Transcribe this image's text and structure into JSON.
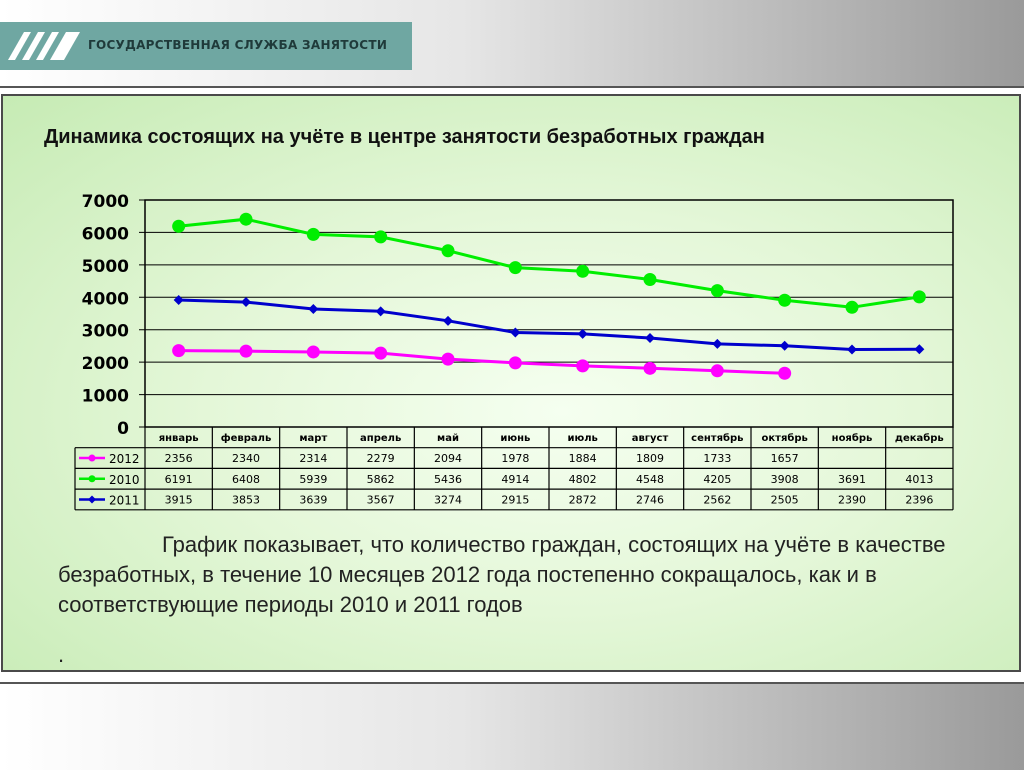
{
  "header": {
    "agency_name": "ГОСУДАРСТВЕННАЯ СЛУЖБА ЗАНЯТОСТИ",
    "logo_icon": "stripes-logo-icon",
    "brand_color": "#6fa7a2"
  },
  "slide": {
    "title": "Динамика состоящих на учёте в центре занятости безработных граждан",
    "caption": "График показывает, что количество граждан, состоящих на учёте в качестве безработных, в течение 10 месяцев 2012 года постепенно сокращалось, как и в соответствующие периоды 2010 и 2011 годов",
    "trailing_dot": "."
  },
  "chart_data": {
    "type": "line",
    "title": "",
    "xlabel": "",
    "ylabel": "",
    "ylim": [
      0,
      7000
    ],
    "yticks": [
      0,
      1000,
      2000,
      3000,
      4000,
      5000,
      6000,
      7000
    ],
    "grid": true,
    "legend": "data-table-left",
    "categories": [
      "январь",
      "февраль",
      "март",
      "апрель",
      "май",
      "июнь",
      "июль",
      "август",
      "сентябрь",
      "октябрь",
      "ноябрь",
      "декабрь"
    ],
    "series": [
      {
        "name": "2012",
        "color": "#ff00ff",
        "marker": "circle",
        "values": [
          2356,
          2340,
          2314,
          2279,
          2094,
          1978,
          1884,
          1809,
          1733,
          1657,
          null,
          null
        ]
      },
      {
        "name": "2010",
        "color": "#00ee00",
        "marker": "circle",
        "values": [
          6191,
          6408,
          5939,
          5862,
          5436,
          4914,
          4802,
          4548,
          4205,
          3908,
          3691,
          4013
        ]
      },
      {
        "name": "2011",
        "color": "#0000cc",
        "marker": "diamond",
        "values": [
          3915,
          3853,
          3639,
          3567,
          3274,
          2915,
          2872,
          2746,
          2562,
          2505,
          2390,
          2396
        ]
      }
    ]
  }
}
